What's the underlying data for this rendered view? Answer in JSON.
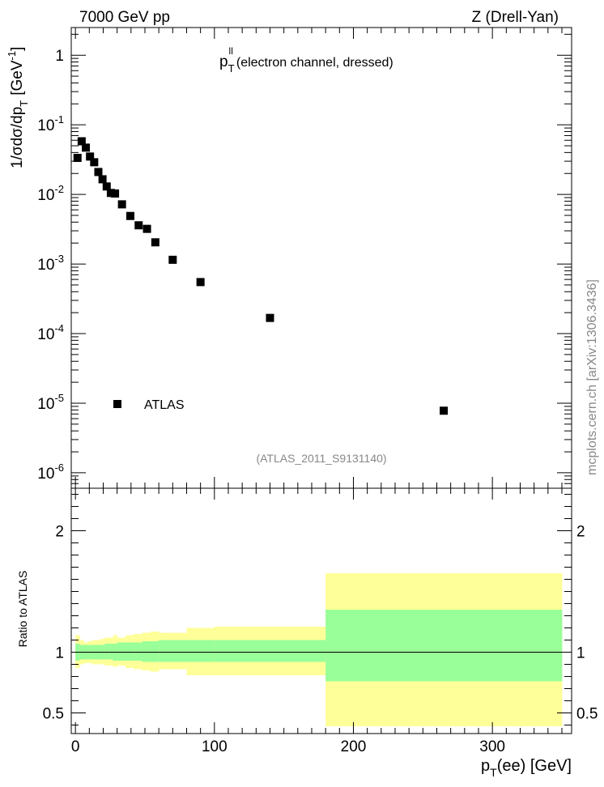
{
  "header": {
    "left": "7000 GeV pp",
    "right": "Z (Drell-Yan)"
  },
  "source_label": "mcplots.cern.ch [arXiv:1306.3436]",
  "analysis_label": "(ATLAS_2011_S9131140)",
  "chart_data": [
    {
      "type": "scatter",
      "title_main": "p",
      "title_sup": "ll",
      "title_sub": "T",
      "title_rest": "(electron channel, dressed)",
      "ylabel_parts": [
        "1/σdσ/dp",
        "T",
        "[GeV",
        "-1",
        "]"
      ],
      "yscale": "log",
      "xlim": [
        -3,
        357
      ],
      "ylim": [
        6e-07,
        2.5
      ],
      "ytick_values": [
        1e-06,
        1e-05,
        0.0001,
        0.001,
        0.01,
        0.1,
        1
      ],
      "ytick_labels": [
        {
          "base": "10",
          "exp": "-6"
        },
        {
          "base": "10",
          "exp": "-5"
        },
        {
          "base": "10",
          "exp": "-4"
        },
        {
          "base": "10",
          "exp": "-3"
        },
        {
          "base": "10",
          "exp": "-2"
        },
        {
          "base": "10",
          "exp": "-1"
        },
        {
          "base": "1",
          "exp": ""
        }
      ],
      "legend": {
        "entries": [
          "ATLAS"
        ],
        "placement": "bottom-left"
      },
      "series": [
        {
          "name": "ATLAS",
          "x": [
            1.5,
            4.5,
            7.5,
            10.5,
            13.5,
            16.5,
            19.5,
            22.5,
            25.5,
            28.5,
            33.5,
            39.5,
            45.5,
            51.5,
            57.5,
            70,
            90,
            140,
            265
          ],
          "y": [
            0.0335,
            0.058,
            0.047,
            0.035,
            0.029,
            0.021,
            0.0165,
            0.013,
            0.0105,
            0.0103,
            0.0072,
            0.0049,
            0.0036,
            0.0032,
            0.00205,
            0.00115,
            0.00055,
            0.000168,
            7.8e-06
          ]
        }
      ]
    },
    {
      "type": "area",
      "ylabel": "Ratio to ATLAS",
      "xlabel_main": "p",
      "xlabel_sub": "T",
      "xlabel_rest": "(ee) [GeV]",
      "xlim": [
        -3,
        357
      ],
      "ylim": [
        0.33,
        2.35
      ],
      "xtick_values": [
        0,
        100,
        200,
        300
      ],
      "xtick_labels": [
        "0",
        "100",
        "200",
        "300"
      ],
      "ytick_values": [
        0.5,
        1,
        2
      ],
      "ytick_labels": [
        "0.5",
        "1",
        "2"
      ],
      "reference_line": 1,
      "colors": {
        "inner_band": "#99ff99",
        "outer_band": "#ffff99"
      },
      "bins": [
        {
          "x0": 0,
          "x1": 3,
          "inner": [
            0.93,
            1.07
          ],
          "outer": [
            0.87,
            1.14
          ]
        },
        {
          "x0": 3,
          "x1": 6,
          "inner": [
            0.94,
            1.06
          ],
          "outer": [
            0.9,
            1.1
          ]
        },
        {
          "x0": 6,
          "x1": 9,
          "inner": [
            0.94,
            1.06
          ],
          "outer": [
            0.91,
            1.08
          ]
        },
        {
          "x0": 9,
          "x1": 12,
          "inner": [
            0.94,
            1.06
          ],
          "outer": [
            0.91,
            1.09
          ]
        },
        {
          "x0": 12,
          "x1": 15,
          "inner": [
            0.94,
            1.06
          ],
          "outer": [
            0.9,
            1.1
          ]
        },
        {
          "x0": 15,
          "x1": 18,
          "inner": [
            0.94,
            1.06
          ],
          "outer": [
            0.9,
            1.1
          ]
        },
        {
          "x0": 18,
          "x1": 21,
          "inner": [
            0.94,
            1.06
          ],
          "outer": [
            0.9,
            1.11
          ]
        },
        {
          "x0": 21,
          "x1": 24,
          "inner": [
            0.94,
            1.07
          ],
          "outer": [
            0.89,
            1.12
          ]
        },
        {
          "x0": 24,
          "x1": 27,
          "inner": [
            0.94,
            1.07
          ],
          "outer": [
            0.89,
            1.12
          ]
        },
        {
          "x0": 27,
          "x1": 30,
          "inner": [
            0.93,
            1.07
          ],
          "outer": [
            0.88,
            1.14
          ]
        },
        {
          "x0": 30,
          "x1": 36,
          "inner": [
            0.93,
            1.08
          ],
          "outer": [
            0.89,
            1.12
          ]
        },
        {
          "x0": 36,
          "x1": 42,
          "inner": [
            0.93,
            1.08
          ],
          "outer": [
            0.87,
            1.14
          ]
        },
        {
          "x0": 42,
          "x1": 48,
          "inner": [
            0.93,
            1.08
          ],
          "outer": [
            0.86,
            1.15
          ]
        },
        {
          "x0": 48,
          "x1": 54,
          "inner": [
            0.92,
            1.09
          ],
          "outer": [
            0.85,
            1.16
          ]
        },
        {
          "x0": 54,
          "x1": 60,
          "inner": [
            0.92,
            1.09
          ],
          "outer": [
            0.84,
            1.17
          ]
        },
        {
          "x0": 60,
          "x1": 80,
          "inner": [
            0.92,
            1.1
          ],
          "outer": [
            0.86,
            1.16
          ]
        },
        {
          "x0": 80,
          "x1": 100,
          "inner": [
            0.92,
            1.1
          ],
          "outer": [
            0.81,
            1.2
          ]
        },
        {
          "x0": 100,
          "x1": 180,
          "inner": [
            0.92,
            1.1
          ],
          "outer": [
            0.81,
            1.21
          ]
        },
        {
          "x0": 180,
          "x1": 350,
          "inner": [
            0.76,
            1.35
          ],
          "outer": [
            0.39,
            1.65
          ]
        }
      ]
    }
  ]
}
